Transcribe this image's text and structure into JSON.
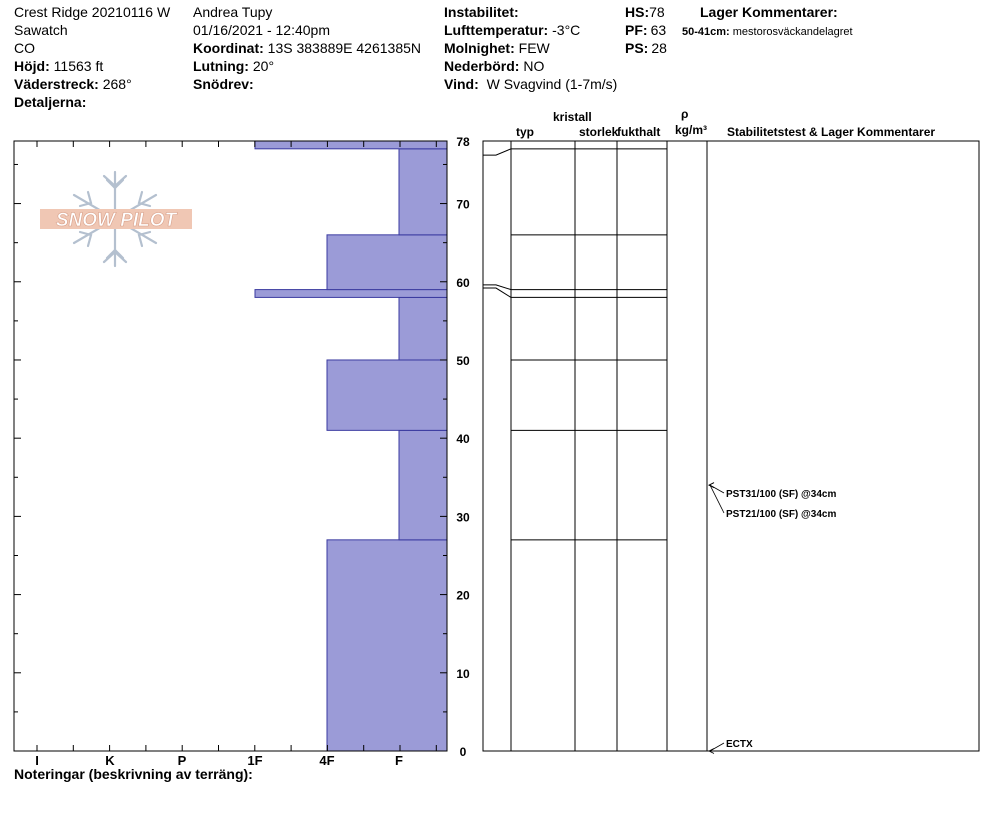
{
  "header": {
    "site": "Crest Ridge 20210116 W",
    "range": "Sawatch",
    "state": "CO",
    "elevation_label": "Höjd:",
    "elevation_value": "11563 ft",
    "aspect_label": "Väderstreck:",
    "aspect_value": "268°",
    "details_label": "Detaljerna:",
    "observer": "Andrea Tupy",
    "datetime": "01/16/2021 - 12:40pm",
    "coord_label": "Koordinat:",
    "coord_value": "13S 383889E 4261385N",
    "slope_label": "Lutning:",
    "slope_value": "20°",
    "drift_label": "Snödrev:",
    "instability_label": "Instabilitet:",
    "airtemp_label": "Lufttemperatur:",
    "airtemp_value": "-3°C",
    "cloud_label": "Molnighet:",
    "cloud_value": "FEW",
    "precip_label": "Nederbörd:",
    "precip_value": "NO",
    "wind_label": "Vind:",
    "wind_value": "W Svagvind (1-7m/s)",
    "hs_label": "HS:",
    "hs_value": "78",
    "pf_label": "PF:",
    "pf_value": "63",
    "ps_label": "PS:",
    "ps_value": "28",
    "layer_comments_title": "Lager Kommentarer:",
    "layer_comment_range": "50-41cm:",
    "layer_comment_text": "mestorosväckandelagret"
  },
  "logo": {
    "text": "SNOW PILOT"
  },
  "columns": {
    "crystal": "kristall",
    "type": "typ",
    "size": "storlek",
    "moisture": "fukthalt",
    "rho": "ρ",
    "density_unit": "kg/m³",
    "stability": "Stabilitetstest & Lager Kommentarer"
  },
  "notes_label": "Noteringar (beskrivning av terräng):",
  "tests": [
    {
      "label": "PST31/100 (SF) @34cm",
      "height": 34
    },
    {
      "label": "PST21/100 (SF) @34cm",
      "height": 34
    },
    {
      "label": "ECTX",
      "height": 0
    }
  ],
  "colors": {
    "hardness_fill": "#9b9bd7",
    "hardness_stroke": "#3a3aa0"
  },
  "chart_data": {
    "type": "bar",
    "orientation": "horizontal",
    "title": "",
    "xlabel": "",
    "ylabel": "",
    "x_categories": [
      "I",
      "K",
      "P",
      "1F",
      "4F",
      "F"
    ],
    "x_reversed": true,
    "yticks": [
      0,
      10,
      20,
      30,
      40,
      50,
      60,
      70,
      78
    ],
    "ylim": [
      0,
      78
    ],
    "layers": [
      {
        "bottom": 0,
        "top": 27,
        "hardness": "4F"
      },
      {
        "bottom": 27,
        "top": 41,
        "hardness": "F"
      },
      {
        "bottom": 41,
        "top": 50,
        "hardness": "4F"
      },
      {
        "bottom": 50,
        "top": 58,
        "hardness": "F"
      },
      {
        "bottom": 58,
        "top": 59,
        "hardness": "1F"
      },
      {
        "bottom": 59,
        "top": 66,
        "hardness": "4F"
      },
      {
        "bottom": 66,
        "top": 77,
        "hardness": "F"
      },
      {
        "bottom": 77,
        "top": 78,
        "hardness": "1F"
      }
    ]
  }
}
